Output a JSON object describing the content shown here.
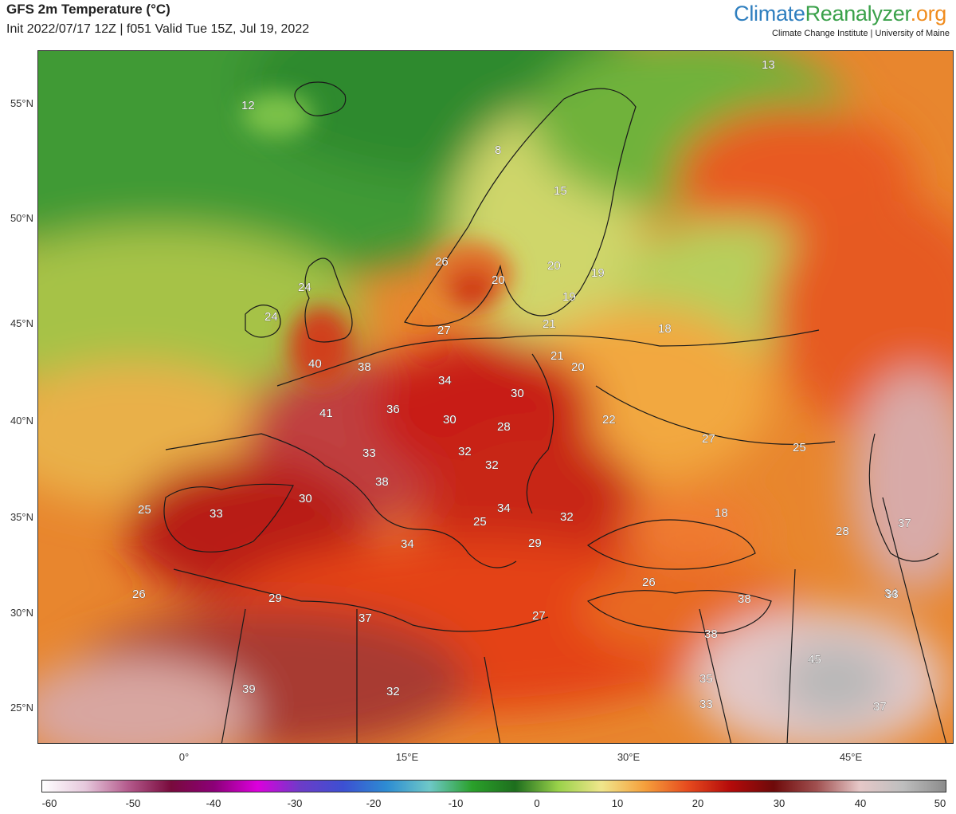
{
  "header": {
    "title": "GFS 2m Temperature (°C)",
    "subtitle": "Init 2022/07/17 12Z | f051 Valid Tue 15Z, Jul 19, 2022"
  },
  "brand": {
    "part1": "Climate",
    "part2": "Reanalyzer",
    "part3": ".org",
    "tagline": "Climate Change Institute | University of Maine",
    "colors": {
      "part1": "#2f7fbf",
      "part2": "#3aa14a",
      "part3": "#f08c1e"
    }
  },
  "map": {
    "lat_labels": [
      "55°N",
      "50°N",
      "45°N",
      "40°N",
      "35°N",
      "30°N",
      "25°N"
    ],
    "lon_labels": [
      "0°",
      "15°E",
      "30°E",
      "45°E"
    ],
    "temperature_labels": [
      "12",
      "13",
      "8",
      "15",
      "26",
      "20",
      "20",
      "19",
      "19",
      "24",
      "24",
      "27",
      "21",
      "18",
      "21",
      "20",
      "40",
      "38",
      "34",
      "30",
      "41",
      "36",
      "30",
      "28",
      "22",
      "27",
      "25",
      "33",
      "32",
      "32",
      "38",
      "30",
      "34",
      "32",
      "18",
      "28",
      "37",
      "25",
      "33",
      "25",
      "34",
      "29",
      "34",
      "26",
      "26",
      "29",
      "37",
      "38",
      "27",
      "33",
      "38",
      "45",
      "35",
      "39",
      "32",
      "33",
      "37"
    ]
  },
  "colorbar": {
    "ticks": [
      "-60",
      "-50",
      "-40",
      "-30",
      "-20",
      "-10",
      "0",
      "10",
      "20",
      "30",
      "40",
      "50"
    ],
    "colors": [
      "#ffffff",
      "#e6c8dc",
      "#b45a8c",
      "#780a3c",
      "#8c0078",
      "#dc00dc",
      "#6c3cc8",
      "#3c50d2",
      "#2d8cd2",
      "#6ec8c8",
      "#2aa02a",
      "#1e6e1e",
      "#9ad24a",
      "#f0e68c",
      "#f5a03c",
      "#e64b1e",
      "#b40a0a",
      "#6e0a0a",
      "#a05050",
      "#e6c8c8",
      "#bebebe",
      "#8c8c8c"
    ]
  }
}
